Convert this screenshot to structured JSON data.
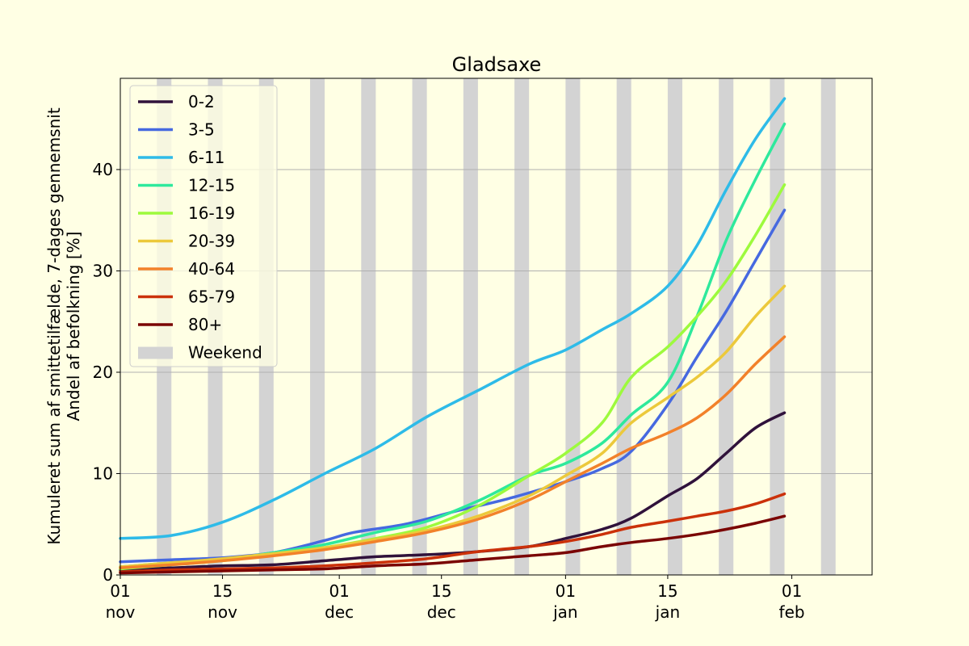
{
  "chart_data": {
    "type": "line",
    "title": "Gladsaxe",
    "ylabel_line1": "Kumuleret sum af smittetilfælde, 7-dages gennemsnit",
    "ylabel_line2": "Andel af befolkning [%]",
    "xlim": [
      "2021-11-01",
      "2022-02-12"
    ],
    "ylim": [
      0,
      49
    ],
    "yticks": [
      0,
      10,
      20,
      30,
      40
    ],
    "xticks": [
      {
        "date": "2021-11-01",
        "line1": "01",
        "line2": "nov"
      },
      {
        "date": "2021-11-15",
        "line1": "15",
        "line2": "nov"
      },
      {
        "date": "2021-12-01",
        "line1": "01",
        "line2": "dec"
      },
      {
        "date": "2021-12-15",
        "line1": "15",
        "line2": "dec"
      },
      {
        "date": "2022-01-01",
        "line1": "01",
        "line2": "jan"
      },
      {
        "date": "2022-01-15",
        "line1": "15",
        "line2": "jan"
      },
      {
        "date": "2022-02-01",
        "line1": "01",
        "line2": "feb"
      }
    ],
    "grid": "horizontal",
    "legend_position": "top-left",
    "weekend_label": "Weekend",
    "weekend_color": "#d3d3d3",
    "weekends": [
      "2021-11-06",
      "2021-11-13",
      "2021-11-20",
      "2021-11-27",
      "2021-12-04",
      "2021-12-11",
      "2021-12-18",
      "2021-12-25",
      "2022-01-01",
      "2022-01-08",
      "2022-01-15",
      "2022-01-22",
      "2022-01-29",
      "2022-02-05",
      "2022-02-12"
    ],
    "series": [
      {
        "name": "0-2",
        "color": "#30123b",
        "points": [
          [
            "2021-11-01",
            0.5
          ],
          [
            "2021-11-08",
            0.7
          ],
          [
            "2021-11-15",
            0.9
          ],
          [
            "2021-11-22",
            1.0
          ],
          [
            "2021-11-29",
            1.4
          ],
          [
            "2021-12-06",
            1.8
          ],
          [
            "2021-12-13",
            2.0
          ],
          [
            "2021-12-20",
            2.3
          ],
          [
            "2021-12-27",
            2.8
          ],
          [
            "2022-01-01",
            3.6
          ],
          [
            "2022-01-06",
            4.5
          ],
          [
            "2022-01-10",
            5.6
          ],
          [
            "2022-01-15",
            7.8
          ],
          [
            "2022-01-19",
            9.5
          ],
          [
            "2022-01-23",
            12.0
          ],
          [
            "2022-01-27",
            14.5
          ],
          [
            "2022-01-31",
            16.0
          ]
        ]
      },
      {
        "name": "3-5",
        "color": "#4669e0",
        "points": [
          [
            "2021-11-01",
            1.3
          ],
          [
            "2021-11-08",
            1.5
          ],
          [
            "2021-11-15",
            1.7
          ],
          [
            "2021-11-22",
            2.2
          ],
          [
            "2021-11-29",
            3.4
          ],
          [
            "2021-12-03",
            4.2
          ],
          [
            "2021-12-10",
            5.0
          ],
          [
            "2021-12-17",
            6.3
          ],
          [
            "2021-12-24",
            7.5
          ],
          [
            "2022-01-01",
            9.2
          ],
          [
            "2022-01-06",
            10.5
          ],
          [
            "2022-01-10",
            12.2
          ],
          [
            "2022-01-15",
            16.8
          ],
          [
            "2022-01-19",
            21.5
          ],
          [
            "2022-01-23",
            26.0
          ],
          [
            "2022-01-27",
            31.0
          ],
          [
            "2022-01-31",
            36.0
          ]
        ]
      },
      {
        "name": "6-11",
        "color": "#2ebbe8",
        "points": [
          [
            "2021-11-01",
            3.6
          ],
          [
            "2021-11-08",
            3.9
          ],
          [
            "2021-11-15",
            5.2
          ],
          [
            "2021-11-22",
            7.4
          ],
          [
            "2021-11-29",
            10.0
          ],
          [
            "2021-12-06",
            12.5
          ],
          [
            "2021-12-13",
            15.6
          ],
          [
            "2021-12-20",
            18.2
          ],
          [
            "2021-12-27",
            20.8
          ],
          [
            "2022-01-01",
            22.2
          ],
          [
            "2022-01-06",
            24.2
          ],
          [
            "2022-01-10",
            25.8
          ],
          [
            "2022-01-15",
            28.5
          ],
          [
            "2022-01-19",
            32.5
          ],
          [
            "2022-01-23",
            38.0
          ],
          [
            "2022-01-27",
            43.0
          ],
          [
            "2022-01-31",
            47.0
          ]
        ]
      },
      {
        "name": "12-15",
        "color": "#2ee99c",
        "points": [
          [
            "2021-11-01",
            0.8
          ],
          [
            "2021-11-08",
            1.2
          ],
          [
            "2021-11-15",
            1.5
          ],
          [
            "2021-11-22",
            2.2
          ],
          [
            "2021-11-29",
            3.0
          ],
          [
            "2021-12-06",
            4.2
          ],
          [
            "2021-12-13",
            5.3
          ],
          [
            "2021-12-20",
            7.3
          ],
          [
            "2021-12-27",
            9.8
          ],
          [
            "2022-01-01",
            11.0
          ],
          [
            "2022-01-06",
            13.0
          ],
          [
            "2022-01-10",
            15.8
          ],
          [
            "2022-01-15",
            19.0
          ],
          [
            "2022-01-19",
            25.5
          ],
          [
            "2022-01-23",
            33.0
          ],
          [
            "2022-01-27",
            39.0
          ],
          [
            "2022-01-31",
            44.5
          ]
        ]
      },
      {
        "name": "16-19",
        "color": "#9dfa3d",
        "points": [
          [
            "2021-11-01",
            0.6
          ],
          [
            "2021-11-08",
            1.0
          ],
          [
            "2021-11-15",
            1.4
          ],
          [
            "2021-11-22",
            2.0
          ],
          [
            "2021-11-29",
            2.7
          ],
          [
            "2021-12-06",
            3.6
          ],
          [
            "2021-12-13",
            4.7
          ],
          [
            "2021-12-20",
            6.8
          ],
          [
            "2021-12-27",
            9.8
          ],
          [
            "2022-01-01",
            12.0
          ],
          [
            "2022-01-06",
            15.0
          ],
          [
            "2022-01-10",
            19.5
          ],
          [
            "2022-01-15",
            22.5
          ],
          [
            "2022-01-19",
            25.5
          ],
          [
            "2022-01-23",
            29.0
          ],
          [
            "2022-01-27",
            33.5
          ],
          [
            "2022-01-31",
            38.5
          ]
        ]
      },
      {
        "name": "20-39",
        "color": "#ecc93b",
        "points": [
          [
            "2021-11-01",
            0.8
          ],
          [
            "2021-11-08",
            1.2
          ],
          [
            "2021-11-15",
            1.6
          ],
          [
            "2021-11-22",
            2.1
          ],
          [
            "2021-11-29",
            2.7
          ],
          [
            "2021-12-06",
            3.5
          ],
          [
            "2021-12-13",
            4.4
          ],
          [
            "2021-12-20",
            5.8
          ],
          [
            "2021-12-27",
            7.8
          ],
          [
            "2022-01-01",
            9.8
          ],
          [
            "2022-01-06",
            12.0
          ],
          [
            "2022-01-10",
            15.0
          ],
          [
            "2022-01-15",
            17.5
          ],
          [
            "2022-01-19",
            19.5
          ],
          [
            "2022-01-23",
            22.0
          ],
          [
            "2022-01-27",
            25.5
          ],
          [
            "2022-01-31",
            28.5
          ]
        ]
      },
      {
        "name": "40-64",
        "color": "#f2812a",
        "points": [
          [
            "2021-11-01",
            0.7
          ],
          [
            "2021-11-08",
            1.0
          ],
          [
            "2021-11-15",
            1.4
          ],
          [
            "2021-11-22",
            1.9
          ],
          [
            "2021-11-29",
            2.5
          ],
          [
            "2021-12-06",
            3.3
          ],
          [
            "2021-12-13",
            4.2
          ],
          [
            "2021-12-20",
            5.5
          ],
          [
            "2021-12-27",
            7.4
          ],
          [
            "2022-01-01",
            9.2
          ],
          [
            "2022-01-06",
            11.0
          ],
          [
            "2022-01-10",
            12.5
          ],
          [
            "2022-01-15",
            14.0
          ],
          [
            "2022-01-19",
            15.5
          ],
          [
            "2022-01-23",
            17.8
          ],
          [
            "2022-01-27",
            20.8
          ],
          [
            "2022-01-31",
            23.5
          ]
        ]
      },
      {
        "name": "65-79",
        "color": "#cb310a",
        "points": [
          [
            "2021-11-01",
            0.3
          ],
          [
            "2021-11-08",
            0.5
          ],
          [
            "2021-11-15",
            0.6
          ],
          [
            "2021-11-22",
            0.7
          ],
          [
            "2021-11-29",
            0.9
          ],
          [
            "2021-12-06",
            1.2
          ],
          [
            "2021-12-13",
            1.6
          ],
          [
            "2021-12-20",
            2.3
          ],
          [
            "2021-12-27",
            2.8
          ],
          [
            "2022-01-01",
            3.3
          ],
          [
            "2022-01-06",
            4.0
          ],
          [
            "2022-01-10",
            4.7
          ],
          [
            "2022-01-15",
            5.3
          ],
          [
            "2022-01-19",
            5.8
          ],
          [
            "2022-01-23",
            6.3
          ],
          [
            "2022-01-27",
            7.0
          ],
          [
            "2022-01-31",
            8.0
          ]
        ]
      },
      {
        "name": "80+",
        "color": "#7a0403",
        "points": [
          [
            "2021-11-01",
            0.2
          ],
          [
            "2021-11-08",
            0.3
          ],
          [
            "2021-11-15",
            0.4
          ],
          [
            "2021-11-22",
            0.5
          ],
          [
            "2021-11-29",
            0.6
          ],
          [
            "2021-12-06",
            0.9
          ],
          [
            "2021-12-13",
            1.1
          ],
          [
            "2021-12-20",
            1.5
          ],
          [
            "2021-12-27",
            1.9
          ],
          [
            "2022-01-01",
            2.2
          ],
          [
            "2022-01-06",
            2.8
          ],
          [
            "2022-01-10",
            3.2
          ],
          [
            "2022-01-15",
            3.6
          ],
          [
            "2022-01-19",
            4.0
          ],
          [
            "2022-01-23",
            4.5
          ],
          [
            "2022-01-27",
            5.1
          ],
          [
            "2022-01-31",
            5.8
          ]
        ]
      }
    ]
  }
}
